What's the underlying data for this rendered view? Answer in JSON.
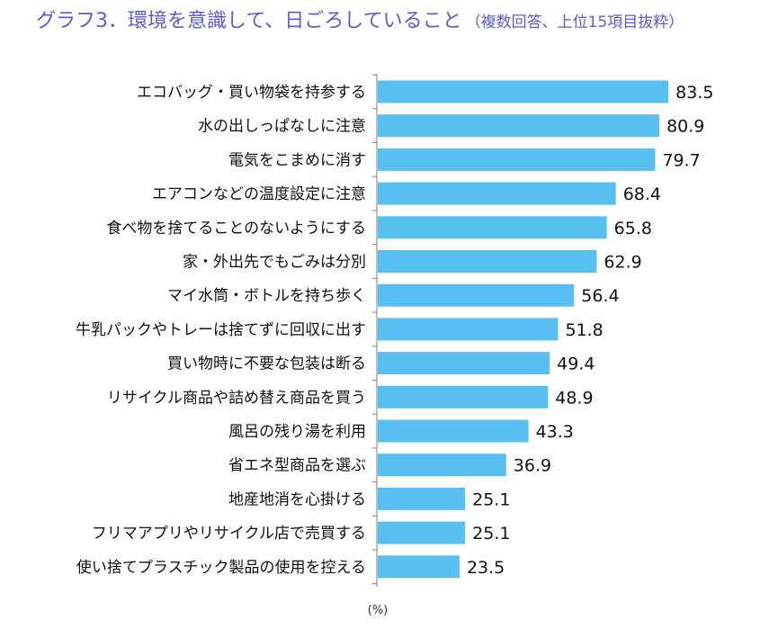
{
  "chart_data": {
    "type": "bar",
    "orientation": "horizontal",
    "title": "グラフ3．環境を意識して、日ごろしていること",
    "subtitle": "（複数回答、上位15項目抜粋）",
    "unit": "(%)",
    "categories": [
      "エコバッグ・買い物袋を持参する",
      "水の出しっぱなしに注意",
      "電気をこまめに消す",
      "エアコンなどの温度設定に注意",
      "食べ物を捨てることのないようにする",
      "家・外出先でもごみは分別",
      "マイ水筒・ボトルを持ち歩く",
      "牛乳パックやトレーは捨てずに回収に出す",
      "買い物時に不要な包装は断る",
      "リサイクル商品や詰め替え商品を買う",
      "風呂の残り湯を利用",
      "省エネ型商品を選ぶ",
      "地産地消を心掛ける",
      "フリマアプリやリサイクル店で売買する",
      "使い捨てプラスチック製品の使用を控える"
    ],
    "values": [
      83.5,
      80.9,
      79.7,
      68.4,
      65.8,
      62.9,
      56.4,
      51.8,
      49.4,
      48.9,
      43.3,
      36.9,
      25.1,
      25.1,
      23.5
    ],
    "value_labels": [
      "83.5",
      "80.9",
      "79.7",
      "68.4",
      "65.8",
      "62.9",
      "56.4",
      "51.8",
      "49.4",
      "48.9",
      "43.3",
      "36.9",
      "25.1",
      "25.1",
      "23.5"
    ],
    "xlim": [
      0,
      100
    ],
    "grid": false,
    "legend": "none",
    "bar_color": "#57c0f0",
    "axis_color": "#7f7f7f",
    "title_color": "#5b5bd6"
  }
}
